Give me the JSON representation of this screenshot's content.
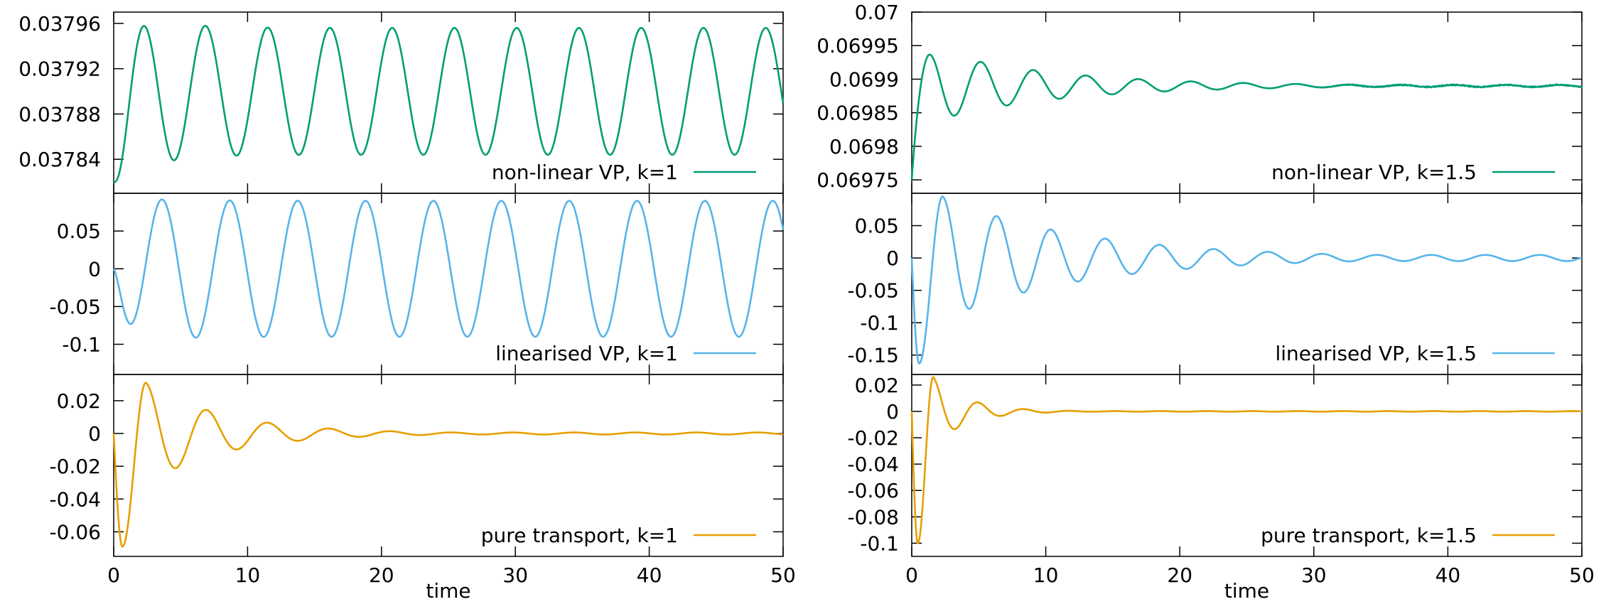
{
  "colors": {
    "nonlinear": "#009e73",
    "linearised": "#56b4e9",
    "transport": "#e69f00"
  },
  "x_axis": {
    "label": "time",
    "ticks": [
      0,
      10,
      20,
      30,
      40,
      50
    ],
    "tick_labels": [
      "0",
      "10",
      "20",
      "30",
      "40",
      "50"
    ],
    "range": [
      0,
      50
    ]
  },
  "chart_data": [
    {
      "id": "nonlinear-k1",
      "type": "line",
      "series_name": "non-linear VP, k=1",
      "color_key": "nonlinear",
      "xlabel": "",
      "ylim": [
        0.03781,
        0.03797
      ],
      "yticks": [
        0.03784,
        0.03788,
        0.03792,
        0.03796
      ],
      "ytick_labels": [
        "0.03784",
        "0.03788",
        "0.03792",
        "0.03796"
      ],
      "model": {
        "kind": "osc",
        "y0": 0.03782,
        "amp": 5.6e-05,
        "amp_start": 8.5e-05,
        "amp_tau": 2.5,
        "offset": 0.039,
        "offset_end": 0.0379,
        "offset_tau": 2.5,
        "period": 4.65,
        "phase_peak": 2.2,
        "noise": 0
      }
    },
    {
      "id": "linearised-k1",
      "type": "line",
      "series_name": "linearised VP, k=1",
      "color_key": "linearised",
      "xlabel": "",
      "ylim": [
        -0.14,
        0.1
      ],
      "yticks": [
        -0.1,
        -0.05,
        0,
        0.05
      ],
      "ytick_labels": [
        "-0.1",
        "-0.05",
        "0",
        "0.05"
      ],
      "model": {
        "kind": "osc",
        "y0": 0,
        "amp": 0.09,
        "amp_start": 0.1,
        "amp_tau": 3,
        "offset": 0,
        "offset_end": 0,
        "offset_tau": 1,
        "period": 5.07,
        "phase_peak": 3.6,
        "noise": 0
      }
    },
    {
      "id": "transport-k1",
      "type": "line",
      "series_name": "pure transport, k=1",
      "color_key": "transport",
      "xlabel": "time",
      "ylim": [
        -0.075,
        0.036
      ],
      "yticks": [
        -0.06,
        -0.04,
        -0.02,
        0,
        0.02
      ],
      "ytick_labels": [
        "-0.06",
        "-0.04",
        "-0.02",
        "0",
        "0.02"
      ],
      "model": {
        "kind": "damped",
        "first_min": -0.069,
        "first_min_t": 0.65,
        "first_max": 0.031,
        "first_max_t": 2.4,
        "amp": 0.03,
        "period": 4.57,
        "phase_peak": 2.4,
        "decay": 0.17,
        "floor": 0.0006
      }
    },
    {
      "id": "nonlinear-k15",
      "type": "line",
      "series_name": "non-linear VP, k=1.5",
      "color_key": "nonlinear",
      "xlabel": "",
      "ylim": [
        0.06973,
        0.07
      ],
      "yticks": [
        0.06975,
        0.0698,
        0.06985,
        0.0699,
        0.06995,
        0.07
      ],
      "ytick_labels": [
        "0.06975",
        "0.0698",
        "0.06985",
        "0.0699",
        "0.06995",
        "0.07"
      ],
      "model": {
        "kind": "nl15",
        "y0": 0.06975,
        "center": 0.06989,
        "amp": 5.45e-05,
        "period": 3.92,
        "phase_peak": 1.25,
        "decay": 0.107,
        "floor": 1.5e-06,
        "noise_amp": 8e-07,
        "noise_start": 28
      }
    },
    {
      "id": "linearised-k15",
      "type": "line",
      "series_name": "linearised VP, k=1.5",
      "color_key": "linearised",
      "xlabel": "",
      "ylim": [
        -0.18,
        0.1
      ],
      "yticks": [
        -0.15,
        -0.1,
        -0.05,
        0,
        0.05
      ],
      "ytick_labels": [
        "-0.15",
        "-0.1",
        "-0.05",
        "0",
        "0.05"
      ],
      "model": {
        "kind": "damped",
        "first_min": -0.163,
        "first_min_t": 0.55,
        "first_max": 0.095,
        "first_max_t": 2.3,
        "amp": 0.08,
        "period": 4.05,
        "phase_peak": 2.3,
        "decay": 0.095,
        "floor": 0.004
      }
    },
    {
      "id": "transport-k15",
      "type": "line",
      "series_name": "pure transport, k=1.5",
      "color_key": "transport",
      "xlabel": "time",
      "ylim": [
        -0.11,
        0.028
      ],
      "yticks": [
        -0.1,
        -0.08,
        -0.06,
        -0.04,
        -0.02,
        0,
        0.02
      ],
      "ytick_labels": [
        "-0.1",
        "-0.08",
        "-0.06",
        "-0.04",
        "-0.02",
        "0",
        "0.02"
      ],
      "model": {
        "kind": "damped",
        "first_min": -0.1,
        "first_min_t": 0.45,
        "first_max": 0.026,
        "first_max_t": 1.6,
        "amp": 0.024,
        "period": 3.4,
        "phase_peak": 1.6,
        "decay": 0.4,
        "floor": 0.0002
      }
    }
  ]
}
